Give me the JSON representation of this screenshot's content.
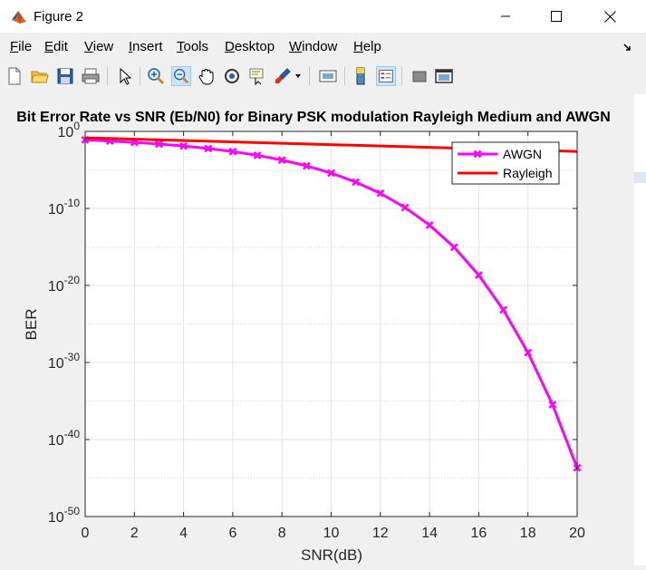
{
  "window": {
    "title": "Figure 2"
  },
  "menu": [
    {
      "pre": "",
      "u": "F",
      "post": "ile"
    },
    {
      "pre": "",
      "u": "E",
      "post": "dit"
    },
    {
      "pre": "",
      "u": "V",
      "post": "iew"
    },
    {
      "pre": "",
      "u": "I",
      "post": "nsert"
    },
    {
      "pre": "",
      "u": "T",
      "post": "ools"
    },
    {
      "pre": "",
      "u": "D",
      "post": "esktop"
    },
    {
      "pre": "",
      "u": "W",
      "post": "indow"
    },
    {
      "pre": "",
      "u": "H",
      "post": "elp"
    }
  ],
  "toolbar_icons": [
    "new-figure-icon",
    "open-file-icon",
    "save-icon",
    "print-icon",
    "pointer-icon",
    "zoom-in-icon",
    "zoom-out-icon",
    "pan-icon",
    "rotate-3d-icon",
    "data-cursor-icon",
    "brush-icon",
    "brush-dropdown-icon",
    "link-plot-icon",
    "colorbar-icon",
    "legend-icon",
    "hide-plot-tools-icon",
    "show-plot-tools-icon"
  ],
  "chart_data": {
    "type": "line",
    "title": "Bit Error Rate vs SNR (Eb/N0) for Binary PSK modulation Rayleigh Medium and AWGN",
    "xlabel": "SNR(dB)",
    "ylabel": "BER",
    "y_scale": "log",
    "xlim": [
      0,
      20
    ],
    "ylim": [
      1e-50,
      1
    ],
    "x_ticks": [
      0,
      2,
      4,
      6,
      8,
      10,
      12,
      14,
      16,
      18,
      20
    ],
    "y_ticks": [
      {
        "base": "10",
        "exp": "0",
        "value": 1
      },
      {
        "base": "10",
        "exp": "-10",
        "value": 1e-10
      },
      {
        "base": "10",
        "exp": "-20",
        "value": 1e-20
      },
      {
        "base": "10",
        "exp": "-30",
        "value": 1e-30
      },
      {
        "base": "10",
        "exp": "-40",
        "value": 1e-40
      },
      {
        "base": "10",
        "exp": "-50",
        "value": 1e-50
      }
    ],
    "grid": true,
    "legend_position": "top-right",
    "series": [
      {
        "name": "AWGN",
        "color": "#ff00ff",
        "marker": "x",
        "x": [
          0,
          1,
          2,
          3,
          4,
          5,
          6,
          7,
          8,
          9,
          10,
          11,
          12,
          13,
          14,
          15,
          16,
          17,
          18,
          19,
          20
        ],
        "y": [
          0.0786,
          0.0563,
          0.0375,
          0.0229,
          0.0125,
          0.00595,
          0.00239,
          0.000773,
          0.000191,
          3.36e-05,
          3.87e-06,
          2.61e-07,
          9.01e-09,
          1.33e-10,
          6.81e-13,
          9.12e-16,
          2.2e-19,
          6.75e-24,
          1.9e-29,
          3.3e-36,
          2.1e-44
        ]
      },
      {
        "name": "Rayleigh",
        "color": "#ff0000",
        "marker": "none",
        "x": [
          0,
          20
        ],
        "y": [
          0.146,
          0.0025
        ]
      }
    ]
  }
}
